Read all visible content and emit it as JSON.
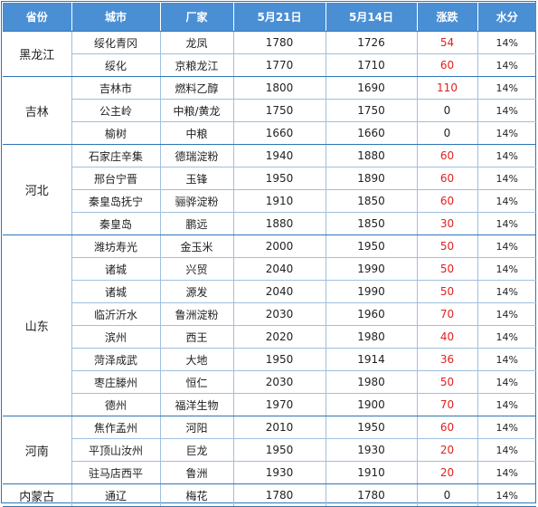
{
  "headers": [
    "省份",
    "城市",
    "厂家",
    "5月21日",
    "5月14日",
    "涨跌",
    "水分"
  ],
  "groups": [
    {
      "province": "黑龙江",
      "rows": [
        {
          "city": "绥化青冈",
          "factory": "龙凤",
          "may21": "1780",
          "may14": "1726",
          "change": "54",
          "water": "14%"
        },
        {
          "city": "绥化",
          "factory": "京粮龙江",
          "may21": "1770",
          "may14": "1710",
          "change": "60",
          "water": "14%"
        }
      ]
    },
    {
      "province": "吉林",
      "rows": [
        {
          "city": "吉林市",
          "factory": "燃料乙醇",
          "may21": "1800",
          "may14": "1690",
          "change": "110",
          "water": "14%"
        },
        {
          "city": "公主岭",
          "factory": "中粮/黄龙",
          "may21": "1750",
          "may14": "1750",
          "change": "0",
          "water": "14%"
        },
        {
          "city": "榆树",
          "factory": "中粮",
          "may21": "1660",
          "may14": "1660",
          "change": "0",
          "water": "14%"
        }
      ]
    },
    {
      "province": "河北",
      "rows": [
        {
          "city": "石家庄辛集",
          "factory": "德瑞淀粉",
          "may21": "1940",
          "may14": "1880",
          "change": "60",
          "water": "14%"
        },
        {
          "city": "邢台宁晋",
          "factory": "玉锋",
          "may21": "1950",
          "may14": "1890",
          "change": "60",
          "water": "14%"
        },
        {
          "city": "秦皇岛抚宁",
          "factory": "骊骅淀粉",
          "may21": "1910",
          "may14": "1850",
          "change": "60",
          "water": "14%"
        },
        {
          "city": "秦皇岛",
          "factory": "鹏远",
          "may21": "1880",
          "may14": "1850",
          "change": "30",
          "water": "14%"
        }
      ]
    },
    {
      "province": "山东",
      "rows": [
        {
          "city": "潍坊寿光",
          "factory": "金玉米",
          "may21": "2000",
          "may14": "1950",
          "change": "50",
          "water": "14%"
        },
        {
          "city": "诸城",
          "factory": "兴贸",
          "may21": "2040",
          "may14": "1990",
          "change": "50",
          "water": "14%"
        },
        {
          "city": "诸城",
          "factory": "源发",
          "may21": "2040",
          "may14": "1990",
          "change": "50",
          "water": "14%"
        },
        {
          "city": "临沂沂水",
          "factory": "鲁洲淀粉",
          "may21": "2030",
          "may14": "1960",
          "change": "70",
          "water": "14%"
        },
        {
          "city": "滨州",
          "factory": "西王",
          "may21": "2020",
          "may14": "1980",
          "change": "40",
          "water": "14%"
        },
        {
          "city": "菏泽成武",
          "factory": "大地",
          "may21": "1950",
          "may14": "1914",
          "change": "36",
          "water": "14%"
        },
        {
          "city": "枣庄滕州",
          "factory": "恒仁",
          "may21": "2030",
          "may14": "1980",
          "change": "50",
          "water": "14%"
        },
        {
          "city": "德州",
          "factory": "福洋生物",
          "may21": "1970",
          "may14": "1900",
          "change": "70",
          "water": "14%"
        }
      ]
    },
    {
      "province": "河南",
      "rows": [
        {
          "city": "焦作孟州",
          "factory": "河阳",
          "may21": "2010",
          "may14": "1950",
          "change": "60",
          "water": "14%"
        },
        {
          "city": "平顶山汝州",
          "factory": "巨龙",
          "may21": "1950",
          "may14": "1930",
          "change": "20",
          "water": "14%"
        },
        {
          "city": "驻马店西平",
          "factory": "鲁洲",
          "may21": "1930",
          "may14": "1910",
          "change": "20",
          "water": "14%"
        }
      ]
    },
    {
      "province": "内蒙古",
      "rows": [
        {
          "city": "通辽",
          "factory": "梅花",
          "may21": "1780",
          "may14": "1780",
          "change": "0",
          "water": "14%"
        }
      ]
    }
  ],
  "colors": {
    "header_bg": "#4a8fd4",
    "header_text": "#ffffff",
    "positive_change": "#e02020",
    "border": "#2e75b6"
  }
}
